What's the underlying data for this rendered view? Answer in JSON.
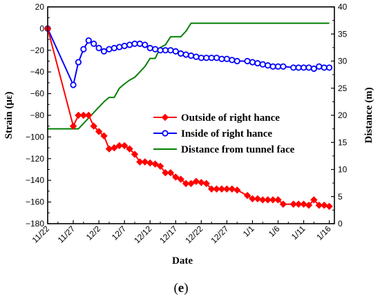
{
  "chart_data": {
    "type": "line",
    "xlabel": "Date",
    "ylabel_left": "Strain (με)",
    "ylabel_right": "Distance (m)",
    "panel_label_open": "(",
    "panel_label_letter": "e",
    "panel_label_close": ")",
    "x_range": [
      "2021-11-22",
      "2022-01-17"
    ],
    "x_tick_labels": [
      "11/22",
      "11/27",
      "12/2",
      "12/7",
      "12/12",
      "12/17",
      "12/22",
      "12/27",
      "1/1",
      "1/6",
      "1/11",
      "1/16"
    ],
    "x_tick_dates": [
      "2021-11-22",
      "2021-11-27",
      "2021-12-02",
      "2021-12-07",
      "2021-12-12",
      "2021-12-17",
      "2021-12-22",
      "2021-12-27",
      "2022-01-01",
      "2022-01-06",
      "2022-01-11",
      "2022-01-16"
    ],
    "y_left_range": [
      -180,
      20
    ],
    "y_left_ticks": [
      -180,
      -160,
      -140,
      -120,
      -100,
      -80,
      -60,
      -40,
      -20,
      0,
      20
    ],
    "y_right_range": [
      0,
      40
    ],
    "y_right_ticks": [
      0,
      5,
      10,
      15,
      20,
      25,
      30,
      35,
      40
    ],
    "legend_position": "center-right",
    "series": [
      {
        "name": "Outside of right hance",
        "axis": "left",
        "color": "#ff0000",
        "marker": "diamond",
        "x": [
          "2021-11-22",
          "2021-11-27",
          "2021-11-28",
          "2021-11-29",
          "2021-11-30",
          "2021-12-01",
          "2021-12-02",
          "2021-12-03",
          "2021-12-04",
          "2021-12-05",
          "2021-12-06",
          "2021-12-07",
          "2021-12-08",
          "2021-12-09",
          "2021-12-10",
          "2021-12-11",
          "2021-12-12",
          "2021-12-13",
          "2021-12-14",
          "2021-12-15",
          "2021-12-16",
          "2021-12-17",
          "2021-12-18",
          "2021-12-19",
          "2021-12-20",
          "2021-12-21",
          "2021-12-22",
          "2021-12-23",
          "2021-12-24",
          "2021-12-25",
          "2021-12-26",
          "2021-12-27",
          "2021-12-28",
          "2021-12-29",
          "2021-12-31",
          "2022-01-01",
          "2022-01-02",
          "2022-01-03",
          "2022-01-04",
          "2022-01-05",
          "2022-01-06",
          "2022-01-07",
          "2022-01-09",
          "2022-01-10",
          "2022-01-11",
          "2022-01-12",
          "2022-01-13",
          "2022-01-14",
          "2022-01-15",
          "2022-01-16"
        ],
        "y": [
          0,
          -90,
          -80,
          -80,
          -80,
          -90,
          -95,
          -99,
          -111,
          -110,
          -108,
          -108,
          -111,
          -116,
          -123,
          -123,
          -124,
          -125,
          -127,
          -133,
          -133,
          -137,
          -139,
          -143,
          -143,
          -141,
          -142,
          -143,
          -148,
          -148,
          -148,
          -148,
          -148,
          -149,
          -154,
          -157,
          -157,
          -158,
          -158,
          -158,
          -158,
          -162,
          -162,
          -162,
          -162,
          -163,
          -158,
          -163,
          -163,
          -164
        ]
      },
      {
        "name": "Inside of right hance",
        "axis": "left",
        "color": "#0000ff",
        "marker": "circle",
        "x": [
          "2021-11-22",
          "2021-11-27",
          "2021-11-28",
          "2021-11-29",
          "2021-11-30",
          "2021-12-01",
          "2021-12-02",
          "2021-12-03",
          "2021-12-04",
          "2021-12-05",
          "2021-12-06",
          "2021-12-07",
          "2021-12-08",
          "2021-12-09",
          "2021-12-10",
          "2021-12-11",
          "2021-12-12",
          "2021-12-13",
          "2021-12-14",
          "2021-12-15",
          "2021-12-16",
          "2021-12-17",
          "2021-12-18",
          "2021-12-19",
          "2021-12-20",
          "2021-12-21",
          "2021-12-22",
          "2021-12-23",
          "2021-12-24",
          "2021-12-25",
          "2021-12-26",
          "2021-12-27",
          "2021-12-28",
          "2021-12-29",
          "2021-12-31",
          "2022-01-01",
          "2022-01-02",
          "2022-01-03",
          "2022-01-04",
          "2022-01-05",
          "2022-01-06",
          "2022-01-07",
          "2022-01-09",
          "2022-01-10",
          "2022-01-11",
          "2022-01-12",
          "2022-01-13",
          "2022-01-14",
          "2022-01-15",
          "2022-01-16"
        ],
        "y": [
          0,
          -52,
          -31,
          -19,
          -11,
          -14,
          -18,
          -21,
          -19,
          -18,
          -17,
          -16,
          -15,
          -14,
          -14,
          -15,
          -18,
          -19,
          -20,
          -20,
          -20,
          -21,
          -23,
          -24,
          -25,
          -26,
          -27,
          -27,
          -27,
          -27,
          -28,
          -28,
          -29,
          -30,
          -30,
          -31,
          -32,
          -33,
          -34,
          -35,
          -35,
          -35,
          -36,
          -36,
          -36,
          -36,
          -37,
          -35,
          -36,
          -36
        ]
      },
      {
        "name": "Distance from tunnel face",
        "axis": "right",
        "color": "#008000",
        "marker": "none",
        "x": [
          "2021-11-22",
          "2021-11-28",
          "2021-11-29",
          "2021-11-30",
          "2021-12-01",
          "2021-12-02",
          "2021-12-03",
          "2021-12-04",
          "2021-12-05",
          "2021-12-06",
          "2021-12-07",
          "2021-12-08",
          "2021-12-09",
          "2021-12-10",
          "2021-12-11",
          "2021-12-12",
          "2021-12-13",
          "2021-12-14",
          "2021-12-15",
          "2021-12-16",
          "2021-12-17",
          "2021-12-18",
          "2021-12-19",
          "2021-12-20",
          "2021-12-21",
          "2021-12-22",
          "2022-01-16"
        ],
        "y": [
          17.5,
          17.5,
          18.5,
          19.5,
          20.5,
          21.5,
          22.5,
          23.3,
          23.3,
          25.0,
          25.8,
          26.5,
          27.0,
          28.0,
          29.0,
          30.5,
          30.5,
          32.5,
          33.0,
          34.5,
          34.5,
          34.5,
          35.5,
          37.0,
          37.0,
          37.0,
          37.0
        ]
      }
    ]
  }
}
